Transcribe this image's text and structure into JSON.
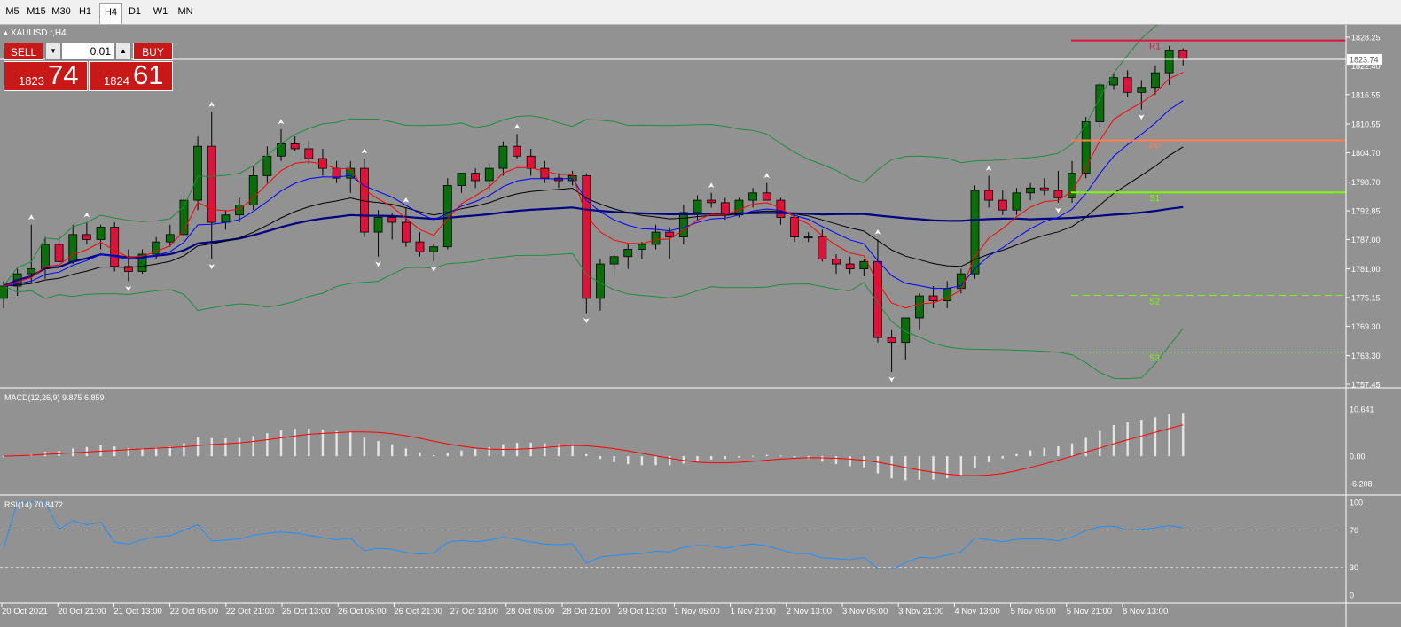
{
  "timeframes": [
    "M5",
    "M15",
    "M30",
    "H1",
    "H4",
    "D1",
    "W1",
    "MN"
  ],
  "active_timeframe": "H4",
  "symbol_label": "XAUUSD.r,H4",
  "trade_panel": {
    "sell_label": "SELL",
    "buy_label": "BUY",
    "lot": "0.01",
    "sell_price_main": "1823",
    "sell_price_big": "74",
    "buy_price_main": "1824",
    "buy_price_big": "61"
  },
  "colors": {
    "background": "#929292",
    "bull_candle": "#0a6e0a",
    "bear_candle": "#dc143c",
    "fast_ma": "#ff0000",
    "mid_ma": "#0000ff",
    "slow_ma": "#000000",
    "long_ma": "#000080",
    "bands": "#1e8c3c",
    "rsi": "#1e90ff"
  },
  "chart_data": [
    {
      "type": "candlestick",
      "title": "",
      "x_ticks": [
        "20 Oct 2021",
        "20 Oct 21:00",
        "21 Oct 13:00",
        "22 Oct 05:00",
        "22 Oct 21:00",
        "25 Oct 13:00",
        "26 Oct 05:00",
        "26 Oct 21:00",
        "27 Oct 13:00",
        "28 Oct 05:00",
        "28 Oct 21:00",
        "29 Oct 13:00",
        "1 Nov 05:00",
        "1 Nov 21:00",
        "2 Nov 13:00",
        "3 Nov 05:00",
        "3 Nov 21:00",
        "4 Nov 13:00",
        "5 Nov 05:00",
        "5 Nov 21:00",
        "8 Nov 13:00"
      ],
      "y_ticks": [
        "1828.25",
        "1822.40",
        "1816.55",
        "1810.55",
        "1804.70",
        "1798.70",
        "1792.85",
        "1787.00",
        "1781.00",
        "1775.15",
        "1769.30",
        "1763.30",
        "1757.45"
      ],
      "ylim": [
        1757.45,
        1828.25
      ],
      "current_price": "1823.74",
      "candles_ohlc": [
        [
          1775.0,
          1778.5,
          1773.0,
          1777.5
        ],
        [
          1777.5,
          1781.0,
          1775.5,
          1780.0
        ],
        [
          1780.0,
          1790.0,
          1778.0,
          1781.0
        ],
        [
          1781.0,
          1787.5,
          1779.0,
          1786.0
        ],
        [
          1786.0,
          1788.0,
          1781.5,
          1782.5
        ],
        [
          1782.5,
          1790.0,
          1782.0,
          1788.0
        ],
        [
          1788.0,
          1790.5,
          1786.0,
          1787.0
        ],
        [
          1787.0,
          1790.0,
          1785.0,
          1789.5
        ],
        [
          1789.5,
          1790.5,
          1780.5,
          1781.5
        ],
        [
          1781.5,
          1785.0,
          1778.5,
          1780.5
        ],
        [
          1780.5,
          1785.0,
          1780.0,
          1784.0
        ],
        [
          1784.0,
          1787.5,
          1783.0,
          1786.5
        ],
        [
          1786.5,
          1790.0,
          1785.5,
          1788.0
        ],
        [
          1788.0,
          1796.0,
          1787.0,
          1795.0
        ],
        [
          1795.0,
          1808.0,
          1793.0,
          1806.0
        ],
        [
          1806.0,
          1813.0,
          1783.0,
          1790.5
        ],
        [
          1790.5,
          1793.0,
          1789.0,
          1792.0
        ],
        [
          1792.0,
          1795.5,
          1790.5,
          1794.0
        ],
        [
          1794.0,
          1802.0,
          1793.0,
          1800.0
        ],
        [
          1800.0,
          1806.0,
          1798.5,
          1804.0
        ],
        [
          1804.0,
          1809.5,
          1803.0,
          1806.5
        ],
        [
          1806.5,
          1808.0,
          1805.0,
          1805.5
        ],
        [
          1805.5,
          1807.0,
          1802.5,
          1803.5
        ],
        [
          1803.5,
          1805.5,
          1800.0,
          1801.5
        ],
        [
          1801.5,
          1803.0,
          1798.5,
          1799.5
        ],
        [
          1799.5,
          1803.0,
          1796.5,
          1801.5
        ],
        [
          1801.5,
          1803.5,
          1787.5,
          1788.5
        ],
        [
          1788.5,
          1793.0,
          1783.5,
          1791.5
        ],
        [
          1791.5,
          1792.5,
          1787.0,
          1790.5
        ],
        [
          1790.5,
          1793.5,
          1785.5,
          1786.5
        ],
        [
          1786.5,
          1788.5,
          1783.5,
          1784.5
        ],
        [
          1784.5,
          1786.0,
          1782.5,
          1785.5
        ],
        [
          1785.5,
          1799.5,
          1785.0,
          1798.0
        ],
        [
          1798.0,
          1800.5,
          1796.5,
          1800.5
        ],
        [
          1800.5,
          1801.5,
          1797.5,
          1799.0
        ],
        [
          1799.0,
          1802.5,
          1797.0,
          1801.5
        ],
        [
          1801.5,
          1807.0,
          1800.0,
          1806.0
        ],
        [
          1806.0,
          1808.5,
          1803.5,
          1804.0
        ],
        [
          1804.0,
          1805.5,
          1800.0,
          1801.5
        ],
        [
          1801.5,
          1803.0,
          1798.5,
          1799.5
        ],
        [
          1799.5,
          1800.5,
          1797.5,
          1799.0
        ],
        [
          1799.0,
          1801.0,
          1798.0,
          1800.0
        ],
        [
          1800.0,
          1800.5,
          1772.0,
          1775.0
        ],
        [
          1775.0,
          1783.0,
          1772.5,
          1782.0
        ],
        [
          1782.0,
          1784.0,
          1779.5,
          1783.5
        ],
        [
          1783.5,
          1786.0,
          1781.0,
          1785.0
        ],
        [
          1785.0,
          1786.5,
          1783.0,
          1786.0
        ],
        [
          1786.0,
          1790.0,
          1785.0,
          1788.5
        ],
        [
          1788.5,
          1789.5,
          1783.0,
          1787.5
        ],
        [
          1787.5,
          1794.0,
          1786.0,
          1792.5
        ],
        [
          1792.5,
          1796.0,
          1791.0,
          1795.0
        ],
        [
          1795.0,
          1796.5,
          1793.5,
          1794.5
        ],
        [
          1794.5,
          1795.5,
          1791.0,
          1792.0
        ],
        [
          1792.0,
          1795.5,
          1791.5,
          1795.0
        ],
        [
          1795.0,
          1797.5,
          1793.5,
          1796.5
        ],
        [
          1796.5,
          1798.5,
          1795.0,
          1795.0
        ],
        [
          1795.0,
          1795.5,
          1790.0,
          1791.5
        ],
        [
          1791.5,
          1792.5,
          1786.5,
          1787.5
        ],
        [
          1787.5,
          1788.5,
          1786.5,
          1787.5
        ],
        [
          1787.5,
          1789.0,
          1782.5,
          1783.0
        ],
        [
          1783.0,
          1784.0,
          1780.0,
          1782.0
        ],
        [
          1782.0,
          1783.5,
          1780.0,
          1781.0
        ],
        [
          1781.0,
          1783.0,
          1779.5,
          1782.5
        ],
        [
          1782.5,
          1787.0,
          1766.0,
          1767.0
        ],
        [
          1767.0,
          1768.5,
          1760.0,
          1766.0
        ],
        [
          1766.0,
          1770.0,
          1762.5,
          1771.0
        ],
        [
          1771.0,
          1776.0,
          1768.5,
          1775.5
        ],
        [
          1775.5,
          1777.5,
          1773.0,
          1774.5
        ],
        [
          1774.5,
          1778.5,
          1773.0,
          1777.0
        ],
        [
          1777.0,
          1781.0,
          1776.0,
          1780.0
        ],
        [
          1780.0,
          1798.0,
          1779.0,
          1797.0
        ],
        [
          1797.0,
          1800.0,
          1793.5,
          1795.0
        ],
        [
          1795.0,
          1797.0,
          1792.0,
          1793.0
        ],
        [
          1793.0,
          1797.5,
          1792.0,
          1796.5
        ],
        [
          1796.5,
          1798.5,
          1795.0,
          1797.5
        ],
        [
          1797.5,
          1799.5,
          1796.0,
          1797.0
        ],
        [
          1797.0,
          1801.0,
          1794.5,
          1795.5
        ],
        [
          1795.5,
          1803.0,
          1794.5,
          1800.5
        ],
        [
          1800.5,
          1812.0,
          1799.5,
          1811.0
        ],
        [
          1811.0,
          1819.0,
          1810.0,
          1818.5
        ],
        [
          1818.5,
          1821.0,
          1817.5,
          1820.0
        ],
        [
          1820.0,
          1821.5,
          1816.0,
          1817.0
        ],
        [
          1817.0,
          1819.5,
          1813.5,
          1818.0
        ],
        [
          1818.0,
          1822.5,
          1816.5,
          1821.0
        ],
        [
          1821.0,
          1826.5,
          1818.5,
          1825.5
        ],
        [
          1825.5,
          1826.0,
          1822.5,
          1823.74
        ]
      ],
      "indicators": [
        "EMA fast",
        "EMA mid",
        "EMA slow",
        "SMA long",
        "Bollinger bands"
      ],
      "pivot_levels": [
        {
          "label": "R1",
          "value": 1827.6,
          "color": "#dc143c",
          "style": "solid"
        },
        {
          "label": "PP",
          "value": 1807.2,
          "color": "#ff7f50",
          "style": "solid"
        },
        {
          "label": "S1",
          "value": 1796.6,
          "color": "#7cfc00",
          "style": "solid"
        },
        {
          "label": "S2",
          "value": 1775.6,
          "color": "#7cfc00",
          "style": "dash"
        },
        {
          "label": "S3",
          "value": 1764.0,
          "color": "#7cfc00",
          "style": "dot"
        }
      ]
    },
    {
      "type": "bar",
      "title": "MACD(12,26,9) 9.875 6.859",
      "y_ticks": [
        "10.641",
        "0.00",
        "-6.208"
      ],
      "ylim": [
        -6.208,
        10.641
      ]
    },
    {
      "type": "line",
      "title": "RSI(14) 70.8472",
      "y_ticks": [
        "100",
        "70",
        "30",
        "0"
      ],
      "ylim": [
        0,
        100
      ],
      "levels": [
        70,
        30
      ]
    }
  ]
}
